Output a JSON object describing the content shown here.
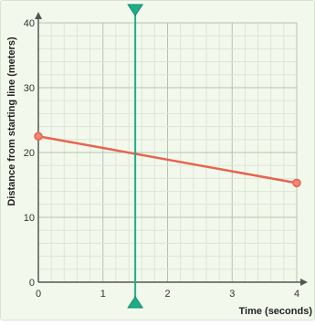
{
  "chart_data": {
    "type": "line",
    "xlabel": "Time (seconds)",
    "ylabel": "Distance from starting line (meters)",
    "xlim": [
      0,
      4
    ],
    "ylim": [
      0,
      40
    ],
    "x_ticks": [
      "0",
      "1",
      "2",
      "3",
      "4"
    ],
    "y_ticks": [
      "0",
      "10",
      "20",
      "30",
      "40"
    ],
    "x_minor_step": 0.2,
    "y_minor_step": 2,
    "grid": true,
    "series": [
      {
        "points": [
          {
            "x": 0,
            "y": 22.5
          },
          {
            "x": 4,
            "y": 15.3
          }
        ]
      }
    ],
    "vertical_marker": {
      "x": 1.5
    }
  },
  "colors": {
    "background": "#f2f9ec",
    "grid_minor": "#dce6d5",
    "grid_major": "#b5c2ad",
    "axis": "#555555",
    "line": "#e8634f",
    "point_fill": "#f2857a",
    "marker": "#1eae87"
  }
}
